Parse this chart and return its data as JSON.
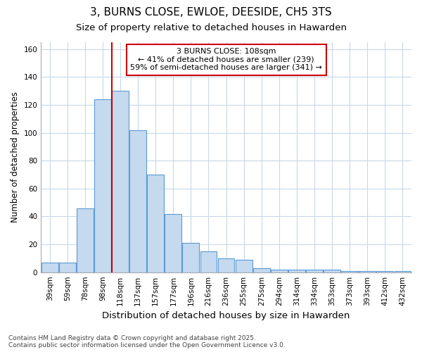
{
  "title": "3, BURNS CLOSE, EWLOE, DEESIDE, CH5 3TS",
  "subtitle": "Size of property relative to detached houses in Hawarden",
  "xlabel": "Distribution of detached houses by size in Hawarden",
  "ylabel": "Number of detached properties",
  "categories": [
    "39sqm",
    "59sqm",
    "78sqm",
    "98sqm",
    "118sqm",
    "137sqm",
    "157sqm",
    "177sqm",
    "196sqm",
    "216sqm",
    "236sqm",
    "255sqm",
    "275sqm",
    "294sqm",
    "314sqm",
    "334sqm",
    "353sqm",
    "373sqm",
    "393sqm",
    "412sqm",
    "432sqm"
  ],
  "values": [
    7,
    7,
    46,
    124,
    130,
    102,
    70,
    42,
    21,
    15,
    10,
    9,
    3,
    2,
    2,
    2,
    2,
    1,
    1,
    1,
    1
  ],
  "bar_color": "#c5d9ef",
  "bar_edge_color": "#5b9bd5",
  "red_line_x": 3.5,
  "marker_label": "3 BURNS CLOSE: 108sqm",
  "annotation_line1": "← 41% of detached houses are smaller (239)",
  "annotation_line2": "59% of semi-detached houses are larger (341) →",
  "annotation_box_color": "#ffffff",
  "annotation_box_edge_color": "#cc0000",
  "red_line_color": "#cc0000",
  "ylim": [
    0,
    165
  ],
  "yticks": [
    0,
    20,
    40,
    60,
    80,
    100,
    120,
    140,
    160
  ],
  "footer_line1": "Contains HM Land Registry data © Crown copyright and database right 2025.",
  "footer_line2": "Contains public sector information licensed under the Open Government Licence v3.0.",
  "background_color": "#ffffff",
  "plot_bg_color": "#ffffff",
  "grid_color": "#c8d8e8",
  "title_fontsize": 11,
  "subtitle_fontsize": 9.5,
  "xlabel_fontsize": 9.5,
  "ylabel_fontsize": 8.5,
  "tick_fontsize": 7.5,
  "footer_fontsize": 6.5,
  "annotation_fontsize": 8
}
